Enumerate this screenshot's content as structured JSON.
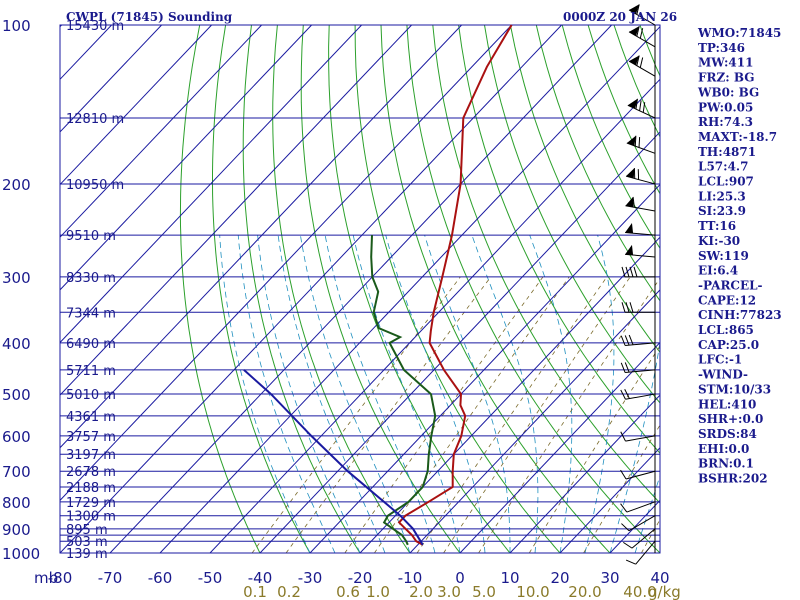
{
  "chart_data": {
    "type": "skew-t",
    "title_left": "CWPL (71845) Sounding",
    "title_right": "0000Z 20 JAN 26",
    "pressure_ticks": [
      100,
      200,
      300,
      400,
      500,
      600,
      700,
      800,
      900,
      1000
    ],
    "pressure_lines": [
      100,
      150,
      200,
      250,
      300,
      350,
      400,
      450,
      500,
      550,
      600,
      650,
      700,
      750,
      800,
      850,
      900,
      925,
      950,
      1000
    ],
    "temp_axis": {
      "unit_label": "mb",
      "ticks": [
        -80,
        -70,
        -60,
        -50,
        -40,
        -30,
        -20,
        -10,
        0,
        10,
        20,
        30,
        40
      ],
      "tick_labels": [
        "-80",
        "-70",
        "-60",
        "-50",
        "-40",
        "-30",
        "-20",
        "-10",
        "0",
        "10",
        "20",
        "30",
        "40"
      ],
      "xlim": [
        -80,
        40
      ]
    },
    "mixing_ratio_labels": [
      "0.1",
      "0.2",
      "0.6",
      "1.0",
      "2.0",
      "3.0",
      "5.0",
      "10.0",
      "20.0",
      "40.0"
    ],
    "mixing_ratio_unit": "g/kg",
    "heights": [
      {
        "p": 100,
        "label": "15430 m"
      },
      {
        "p": 150,
        "label": "12810 m"
      },
      {
        "p": 200,
        "label": "10950 m"
      },
      {
        "p": 250,
        "label": "9510 m"
      },
      {
        "p": 300,
        "label": "8330 m"
      },
      {
        "p": 350,
        "label": "7344 m"
      },
      {
        "p": 400,
        "label": "6490 m"
      },
      {
        "p": 450,
        "label": "5711 m"
      },
      {
        "p": 500,
        "label": "5010 m"
      },
      {
        "p": 550,
        "label": "4361 m"
      },
      {
        "p": 600,
        "label": "3757 m"
      },
      {
        "p": 650,
        "label": "3197 m"
      },
      {
        "p": 700,
        "label": "2678 m"
      },
      {
        "p": 750,
        "label": "2188 m"
      },
      {
        "p": 800,
        "label": "1729 m"
      },
      {
        "p": 850,
        "label": "1300 m"
      },
      {
        "p": 900,
        "label": "895 m"
      },
      {
        "p": 950,
        "label": "503 m"
      },
      {
        "p": 1000,
        "label": "139 m"
      }
    ],
    "series": [
      {
        "name": "Temperature",
        "color": "#aa1111",
        "points": [
          [
            965,
            -9
          ],
          [
            950,
            -11
          ],
          [
            925,
            -13
          ],
          [
            900,
            -15.5
          ],
          [
            875,
            -18
          ],
          [
            850,
            -18
          ],
          [
            800,
            -16
          ],
          [
            750,
            -14
          ],
          [
            700,
            -17
          ],
          [
            650,
            -20
          ],
          [
            600,
            -22
          ],
          [
            550,
            -25
          ],
          [
            525,
            -28
          ],
          [
            500,
            -30
          ],
          [
            450,
            -38
          ],
          [
            400,
            -46
          ],
          [
            380,
            -48
          ],
          [
            350,
            -51
          ],
          [
            300,
            -56
          ],
          [
            250,
            -62
          ],
          [
            200,
            -70
          ],
          [
            150,
            -82
          ],
          [
            120,
            -87
          ],
          [
            100,
            -90
          ]
        ]
      },
      {
        "name": "Dewpoint",
        "color": "#1a5a1a",
        "points": [
          [
            965,
            -12
          ],
          [
            950,
            -13
          ],
          [
            925,
            -15
          ],
          [
            900,
            -18
          ],
          [
            875,
            -21
          ],
          [
            850,
            -21.5
          ],
          [
            800,
            -20
          ],
          [
            750,
            -20
          ],
          [
            700,
            -22
          ],
          [
            650,
            -25
          ],
          [
            600,
            -28
          ],
          [
            550,
            -31
          ],
          [
            500,
            -36
          ],
          [
            450,
            -46
          ],
          [
            400,
            -54
          ],
          [
            390,
            -53
          ],
          [
            375,
            -59
          ],
          [
            350,
            -63
          ],
          [
            320,
            -66
          ],
          [
            300,
            -70
          ],
          [
            275,
            -74
          ],
          [
            250,
            -78
          ]
        ]
      },
      {
        "name": "Parcel",
        "color": "#1a1aa0",
        "points": [
          [
            965,
            -9
          ],
          [
            900,
            -14
          ],
          [
            850,
            -19
          ],
          [
            700,
            -38
          ],
          [
            600,
            -52
          ],
          [
            500,
            -68
          ],
          [
            450,
            -78
          ]
        ]
      }
    ],
    "wind_barbs": [
      {
        "p": 100,
        "dir": 300,
        "kt": 65
      },
      {
        "p": 110,
        "dir": 300,
        "kt": 70
      },
      {
        "p": 125,
        "dir": 300,
        "kt": 75
      },
      {
        "p": 150,
        "dir": 295,
        "kt": 80
      },
      {
        "p": 175,
        "dir": 290,
        "kt": 75
      },
      {
        "p": 200,
        "dir": 285,
        "kt": 70
      },
      {
        "p": 225,
        "dir": 280,
        "kt": 60
      },
      {
        "p": 250,
        "dir": 275,
        "kt": 55
      },
      {
        "p": 275,
        "dir": 275,
        "kt": 50
      },
      {
        "p": 300,
        "dir": 270,
        "kt": 45
      },
      {
        "p": 350,
        "dir": 270,
        "kt": 35
      },
      {
        "p": 400,
        "dir": 265,
        "kt": 30
      },
      {
        "p": 450,
        "dir": 265,
        "kt": 25
      },
      {
        "p": 500,
        "dir": 260,
        "kt": 20
      },
      {
        "p": 600,
        "dir": 260,
        "kt": 15
      },
      {
        "p": 700,
        "dir": 255,
        "kt": 10
      },
      {
        "p": 800,
        "dir": 250,
        "kt": 10
      },
      {
        "p": 850,
        "dir": 240,
        "kt": 10
      },
      {
        "p": 900,
        "dir": 230,
        "kt": 10
      },
      {
        "p": 950,
        "dir": 220,
        "kt": 10
      }
    ],
    "colors": {
      "isobar": "#1a1aa0",
      "isotherm": "#1a1aa0",
      "dry_adiabat": "#2ca02c",
      "moist_adiabat": "#1f8fbf",
      "mixing_ratio": "#7a6a2a"
    }
  },
  "indices": [
    "WMO:71845",
    "TP:346",
    "MW:411",
    "FRZ: BG",
    "WB0: BG",
    "PW:0.05",
    "RH:74.3",
    "MAXT:-18.7",
    "TH:4871",
    "L57:4.7",
    "LCL:907",
    "LI:25.3",
    "SI:23.9",
    "TT:16",
    "KI:-30",
    "SW:119",
    "EI:6.4",
    "-PARCEL-",
    "CAPE:12",
    "CINH:77823",
    "LCL:865",
    "CAP:25.0",
    "LFC:-1",
    "-WIND-",
    "STM:10/33",
    "HEL:410",
    "SHR+:0.0",
    "SRDS:84",
    "EHI:0.0",
    "BRN:0.1",
    "BSHR:202"
  ]
}
